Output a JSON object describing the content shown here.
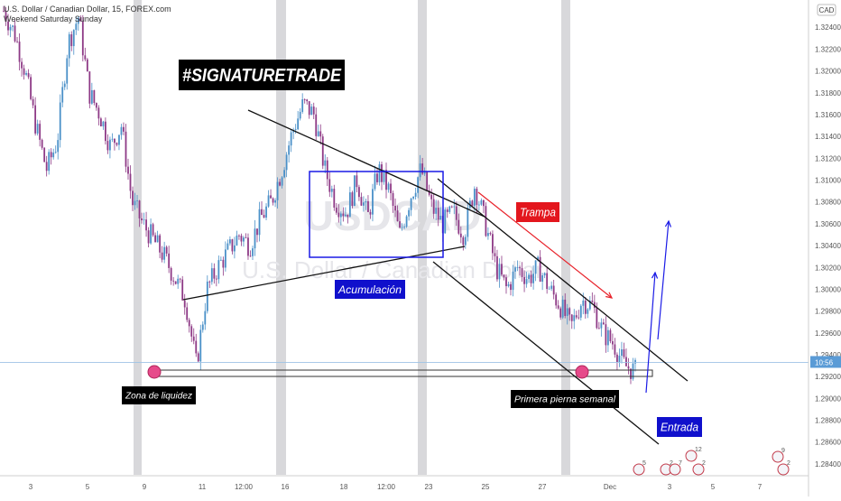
{
  "header": {
    "title": "U.S. Dollar / Canadian Dollar, 15, FOREX.com",
    "subtitle": "Weekend Saturday Sunday"
  },
  "watermark": {
    "symbol": "USDCAD",
    "name": "U.S. Dollar / Canadian Dollar"
  },
  "currency_label": "CAD",
  "current_price_label": "10:56",
  "annotations": {
    "signature": "#SIGNATURETRADE",
    "trampa": "Trampa",
    "acumulacion": "Acumulación",
    "zona_liquidez": "Zona de liquidez",
    "primera_pierna": "Primera pierna semanal",
    "entrada": "Entrada"
  },
  "colors": {
    "candle_up": "#4a90c8",
    "candle_down": "#8e3a86",
    "weekend_band": "#c8c8cc",
    "trend_line": "#111111",
    "box": "#1a1ae6",
    "red_arrow": "#e8222a",
    "blue_arrow": "#1a1ae6",
    "label_black_bg": "#000000",
    "label_blue_bg": "#1010cc",
    "label_red_bg": "#e3161d",
    "liquidity_marker": "#e64a8a"
  },
  "event_badges": [
    "5",
    "2",
    "7",
    "2",
    "12",
    "9",
    "2"
  ],
  "chart_data": {
    "type": "line",
    "title": "U.S. Dollar / Canadian Dollar, 15, FOREX.com",
    "xlabel": "",
    "ylabel": "",
    "x_ticks": [
      "3",
      "5",
      "9",
      "11",
      "12:00",
      "16",
      "18",
      "12:00",
      "23",
      "25",
      "27",
      "Dec",
      "3",
      "5",
      "7"
    ],
    "y_ticks": [
      1.324,
      1.322,
      1.32,
      1.318,
      1.316,
      1.314,
      1.312,
      1.31,
      1.308,
      1.306,
      1.304,
      1.302,
      1.3,
      1.298,
      1.296,
      1.294,
      1.292,
      1.29,
      1.288,
      1.286,
      1.284
    ],
    "ylim": [
      1.283,
      1.3265
    ],
    "current_price": 1.2933,
    "grid": false,
    "series": [
      {
        "values": [
          1.3255,
          1.3235,
          1.32,
          1.315,
          1.311,
          1.3135,
          1.3225,
          1.325,
          1.318,
          1.316,
          1.313,
          1.315,
          1.308,
          1.306,
          1.3045,
          1.303,
          1.301,
          1.299,
          1.293,
          1.3,
          1.302,
          1.3035,
          1.305,
          1.304,
          1.3065,
          1.308,
          1.311,
          1.3145,
          1.317,
          1.316,
          1.311,
          1.308,
          1.307,
          1.31,
          1.3065,
          1.311,
          1.309,
          1.305,
          1.3085,
          1.311,
          1.3075,
          1.306,
          1.307,
          1.305,
          1.3095,
          1.306,
          1.302,
          1.3,
          1.302,
          1.301,
          1.302,
          1.3,
          1.2985,
          1.2965,
          1.299,
          1.2985,
          1.296,
          1.295,
          1.293,
          1.2925
        ]
      }
    ]
  }
}
